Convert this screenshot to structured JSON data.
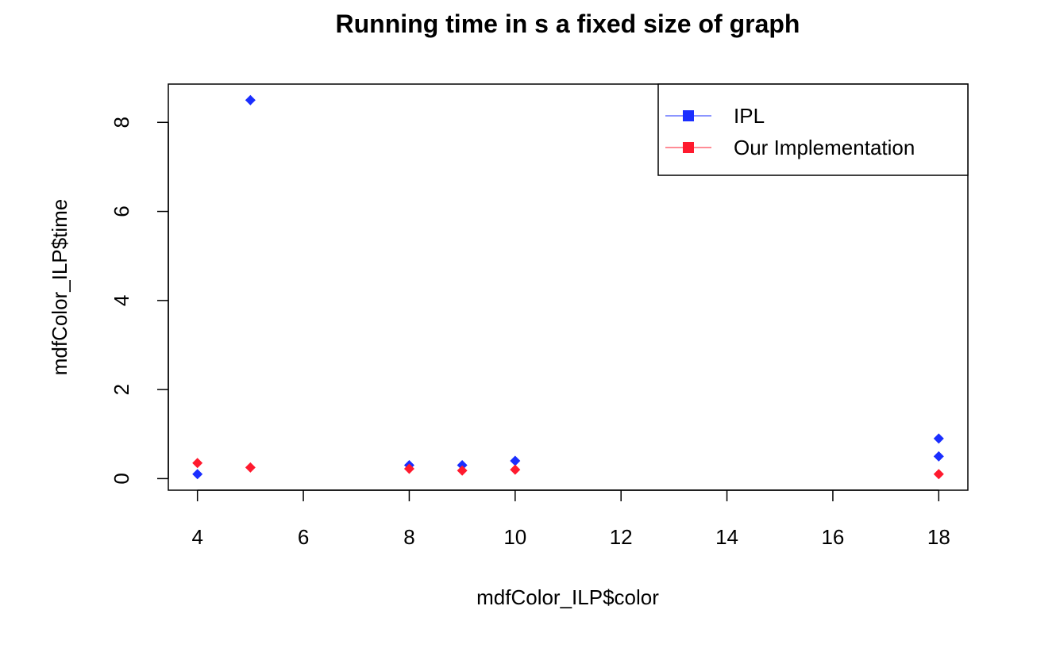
{
  "chart_data": {
    "type": "scatter",
    "title": "Running time in s a fixed size of graph",
    "xlabel": "mdfColor_ILP$color",
    "ylabel": "mdfColor_ILP$time",
    "xlim": [
      3.45,
      18.55
    ],
    "ylim": [
      -0.26,
      8.86
    ],
    "xticks": [
      4,
      6,
      8,
      10,
      12,
      14,
      16,
      18
    ],
    "yticks": [
      0,
      2,
      4,
      6,
      8
    ],
    "grid": false,
    "legend_position": "top-right",
    "series": [
      {
        "name": "IPL",
        "color": "#1a2eff",
        "marker": "diamond",
        "x": [
          4,
          5,
          8,
          9,
          10,
          18,
          18
        ],
        "y": [
          0.1,
          8.5,
          0.3,
          0.3,
          0.4,
          0.9,
          0.5
        ]
      },
      {
        "name": "Our Implementation",
        "color": "#ff1a2e",
        "marker": "diamond",
        "x": [
          4,
          5,
          8,
          9,
          10,
          18
        ],
        "y": [
          0.35,
          0.25,
          0.22,
          0.18,
          0.2,
          0.1
        ]
      }
    ]
  }
}
